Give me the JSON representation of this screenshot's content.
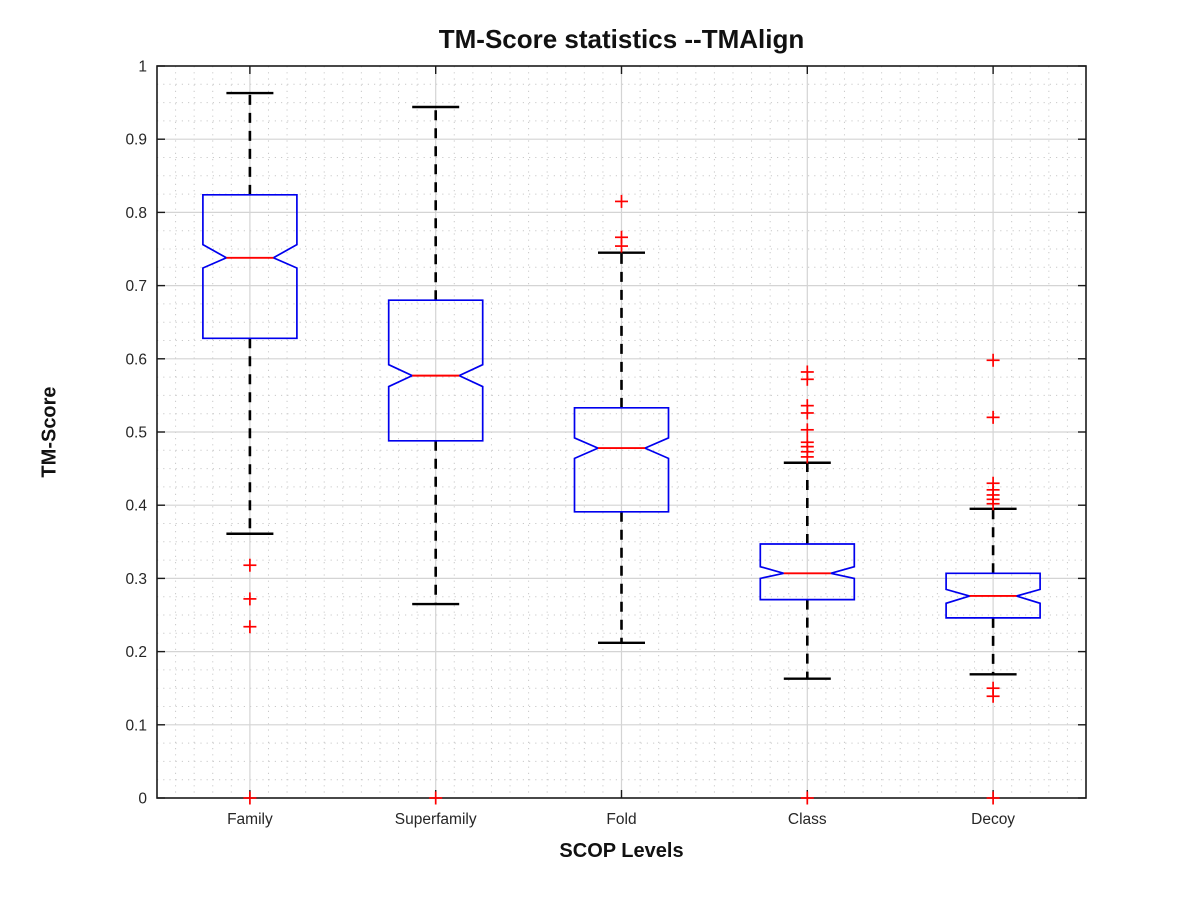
{
  "chart_data": {
    "type": "boxplot",
    "title": "TM-Score statistics --TMAlign",
    "xlabel": "SCOP Levels",
    "ylabel": "TM-Score",
    "categories": [
      "Family",
      "Superfamily",
      "Fold",
      "Class",
      "Decoy"
    ],
    "ylim": [
      0,
      1
    ],
    "yticks": [
      0,
      0.1,
      0.2,
      0.3,
      0.4,
      0.5,
      0.6,
      0.7,
      0.8,
      0.9,
      1
    ],
    "ytick_labels": [
      "0",
      "0.1",
      "0.2",
      "0.3",
      "0.4",
      "0.5",
      "0.6",
      "0.7",
      "0.8",
      "0.9",
      "1"
    ],
    "grid": {
      "major": true,
      "minor": true,
      "minor_y_step": 0.025,
      "minor_x_divisions": 10
    },
    "boxes": [
      {
        "category": "Family",
        "whisker_low": 0.361,
        "q1": 0.628,
        "median": 0.738,
        "q3": 0.824,
        "whisker_high": 0.963,
        "notch_low": 0.724,
        "notch_high": 0.756,
        "outliers": [
          0.318,
          0.272,
          0.234,
          0
        ]
      },
      {
        "category": "Superfamily",
        "whisker_low": 0.265,
        "q1": 0.488,
        "median": 0.577,
        "q3": 0.68,
        "whisker_high": 0.944,
        "notch_low": 0.562,
        "notch_high": 0.592,
        "outliers": [
          0
        ]
      },
      {
        "category": "Fold",
        "whisker_low": 0.212,
        "q1": 0.391,
        "median": 0.478,
        "q3": 0.533,
        "whisker_high": 0.745,
        "notch_low": 0.464,
        "notch_high": 0.492,
        "outliers": [
          0.815,
          0.766,
          0.754
        ]
      },
      {
        "category": "Class",
        "whisker_low": 0.163,
        "q1": 0.271,
        "median": 0.307,
        "q3": 0.347,
        "whisker_high": 0.458,
        "notch_low": 0.3,
        "notch_high": 0.316,
        "outliers": [
          0.582,
          0.572,
          0.536,
          0.526,
          0.503,
          0.486,
          0.48,
          0.473,
          0.466,
          0
        ]
      },
      {
        "category": "Decoy",
        "whisker_low": 0.169,
        "q1": 0.246,
        "median": 0.276,
        "q3": 0.307,
        "whisker_high": 0.395,
        "notch_low": 0.266,
        "notch_high": 0.285,
        "outliers": [
          0.598,
          0.52,
          0.43,
          0.421,
          0.414,
          0.408,
          0.402,
          0.15,
          0.139,
          0
        ]
      }
    ],
    "colors": {
      "box": "#0000ee",
      "median": "#ff0000",
      "whisker": "#000000",
      "outlier": "#ff0000",
      "grid_major": "#d4d4d4",
      "grid_minor": "#c9c9c9",
      "axis": "#1a1a1a",
      "tick_label": "#262626"
    }
  }
}
